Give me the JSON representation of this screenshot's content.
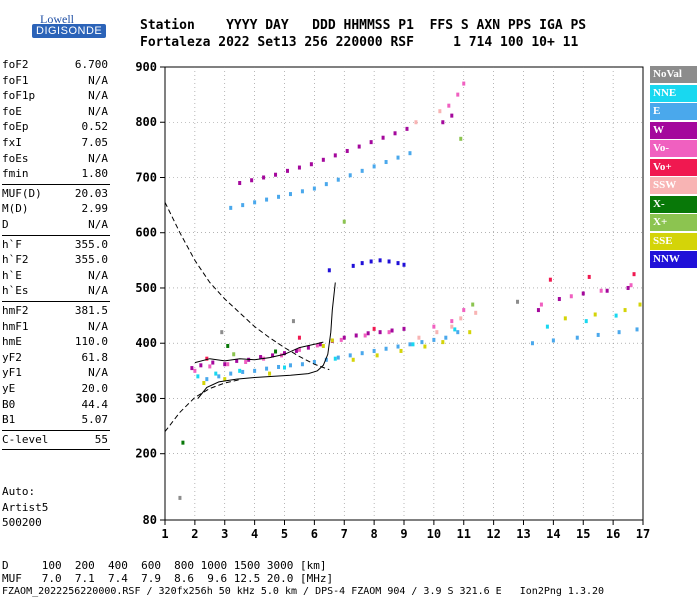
{
  "logo": {
    "brand": "Lowell",
    "product": "DIGISONDE"
  },
  "header": {
    "row1": "Station    YYYY DAY   DDD HHMMSS P1  FFS S AXN PPS IGA PS",
    "row2": "Fortaleza 2022 Set13 256 220000 RSF     1 714 100 10+ 11"
  },
  "params": [
    {
      "name": "foF2",
      "value": "6.700"
    },
    {
      "name": "foF1",
      "value": "N/A"
    },
    {
      "name": "foF1p",
      "value": "N/A"
    },
    {
      "name": "foE",
      "value": "N/A"
    },
    {
      "name": "foEp",
      "value": "0.52"
    },
    {
      "name": "fxI",
      "value": "7.05"
    },
    {
      "name": "foEs",
      "value": "N/A"
    },
    {
      "name": "fmin",
      "value": "1.80"
    },
    {
      "name": "MUF(D)",
      "value": "20.03"
    },
    {
      "name": "M(D)",
      "value": "2.99"
    },
    {
      "name": "D",
      "value": "N/A"
    },
    {
      "name": "h`F",
      "value": "355.0"
    },
    {
      "name": "h`F2",
      "value": "355.0"
    },
    {
      "name": "h`E",
      "value": "N/A"
    },
    {
      "name": "h`Es",
      "value": "N/A"
    },
    {
      "name": "hmF2",
      "value": "381.5"
    },
    {
      "name": "hmF1",
      "value": "N/A"
    },
    {
      "name": "hmE",
      "value": "110.0"
    },
    {
      "name": "yF2",
      "value": "61.8"
    },
    {
      "name": "yF1",
      "value": "N/A"
    },
    {
      "name": "yE",
      "value": "20.0"
    },
    {
      "name": "B0",
      "value": "44.4"
    },
    {
      "name": "B1",
      "value": "5.07"
    },
    {
      "name": "C-level",
      "value": "55"
    }
  ],
  "auto": {
    "label": "Auto:",
    "program": "Artist5",
    "version": "500200"
  },
  "legend": [
    {
      "label": "NoVal",
      "color": "#8c8c8c"
    },
    {
      "label": "NNE",
      "color": "#18d8f0"
    },
    {
      "label": "E",
      "color": "#4aa8ec"
    },
    {
      "label": "W",
      "color": "#a4089c"
    },
    {
      "label": "Vo-",
      "color": "#f060c0"
    },
    {
      "label": "Vo+",
      "color": "#f01850"
    },
    {
      "label": "SSW",
      "color": "#f8b4b4"
    },
    {
      "label": "X-",
      "color": "#087808"
    },
    {
      "label": "X+",
      "color": "#8cc450"
    },
    {
      "label": "SSE",
      "color": "#d4d408"
    },
    {
      "label": "NNW",
      "color": "#2010d8"
    }
  ],
  "footer": {
    "distance_row": "D     100  200  400  600  800 1000 1500 3000 [km]",
    "muf_row": "MUF   7.0  7.1  7.4  7.9  8.6  9.6 12.5 20.0 [MHz]",
    "file_row": "FZAOM_2022256220000.RSF / 320fx256h 50 kHz 5.0 km / DPS-4 FZAOM 904 / 3.9 S 321.6 E   Ion2Png 1.3.20"
  },
  "chart_data": {
    "type": "scatter",
    "title": "",
    "xlabel": "",
    "ylabel": "",
    "xlim": [
      1,
      17
    ],
    "ylim": [
      80,
      900
    ],
    "x_ticks": [
      1,
      2,
      3,
      4,
      5,
      6,
      7,
      8,
      9,
      10,
      11,
      12,
      13,
      14,
      15,
      16,
      17
    ],
    "y_ticks": [
      80,
      200,
      300,
      400,
      500,
      600,
      700,
      800,
      900
    ],
    "grid": "dotted",
    "legend_position": "right",
    "series": [
      {
        "name": "W",
        "color": "#a4089c",
        "points": [
          [
            1.9,
            355
          ],
          [
            2.2,
            360
          ],
          [
            2.6,
            365
          ],
          [
            3.0,
            362
          ],
          [
            3.4,
            368
          ],
          [
            3.8,
            370
          ],
          [
            4.2,
            375
          ],
          [
            4.6,
            378
          ],
          [
            5.0,
            382
          ],
          [
            5.4,
            386
          ],
          [
            5.8,
            392
          ],
          [
            6.2,
            398
          ],
          [
            6.6,
            404
          ],
          [
            7.0,
            410
          ],
          [
            7.4,
            414
          ],
          [
            7.8,
            418
          ],
          [
            8.2,
            420
          ],
          [
            8.6,
            423
          ],
          [
            9.0,
            426
          ],
          [
            3.5,
            690
          ],
          [
            3.9,
            695
          ],
          [
            4.3,
            700
          ],
          [
            4.7,
            705
          ],
          [
            5.1,
            712
          ],
          [
            5.5,
            718
          ],
          [
            5.9,
            724
          ],
          [
            6.3,
            732
          ],
          [
            6.7,
            740
          ],
          [
            7.1,
            748
          ],
          [
            7.5,
            756
          ],
          [
            7.9,
            764
          ],
          [
            8.3,
            772
          ],
          [
            8.7,
            780
          ],
          [
            9.1,
            788
          ],
          [
            10.3,
            800
          ],
          [
            10.6,
            812
          ],
          [
            13.5,
            460
          ],
          [
            14.2,
            480
          ],
          [
            15.0,
            490
          ],
          [
            15.8,
            495
          ],
          [
            16.5,
            500
          ]
        ]
      },
      {
        "name": "E",
        "color": "#4aa8ec",
        "points": [
          [
            2.4,
            335
          ],
          [
            2.8,
            340
          ],
          [
            3.2,
            345
          ],
          [
            3.6,
            348
          ],
          [
            4.0,
            350
          ],
          [
            4.4,
            354
          ],
          [
            4.8,
            357
          ],
          [
            5.2,
            360
          ],
          [
            5.6,
            362
          ],
          [
            6.0,
            366
          ],
          [
            6.4,
            370
          ],
          [
            6.8,
            374
          ],
          [
            7.2,
            378
          ],
          [
            7.6,
            382
          ],
          [
            8.0,
            386
          ],
          [
            8.4,
            390
          ],
          [
            8.8,
            394
          ],
          [
            9.2,
            398
          ],
          [
            9.6,
            402
          ],
          [
            10.0,
            406
          ],
          [
            10.4,
            410
          ],
          [
            10.8,
            420
          ],
          [
            3.2,
            645
          ],
          [
            3.6,
            650
          ],
          [
            4.0,
            655
          ],
          [
            4.4,
            660
          ],
          [
            4.8,
            665
          ],
          [
            5.2,
            670
          ],
          [
            5.6,
            675
          ],
          [
            6.0,
            680
          ],
          [
            6.4,
            688
          ],
          [
            6.8,
            696
          ],
          [
            7.2,
            704
          ],
          [
            7.6,
            712
          ],
          [
            8.0,
            720
          ],
          [
            8.4,
            728
          ],
          [
            8.8,
            736
          ],
          [
            9.2,
            744
          ],
          [
            13.3,
            400
          ],
          [
            14.0,
            405
          ],
          [
            14.8,
            410
          ],
          [
            15.5,
            415
          ],
          [
            16.2,
            420
          ],
          [
            16.8,
            425
          ]
        ]
      },
      {
        "name": "Vo-",
        "color": "#f060c0",
        "points": [
          [
            2.0,
            350
          ],
          [
            2.5,
            358
          ],
          [
            3.1,
            362
          ],
          [
            3.7,
            366
          ],
          [
            4.3,
            372
          ],
          [
            4.9,
            378
          ],
          [
            5.5,
            388
          ],
          [
            6.1,
            396
          ],
          [
            6.9,
            406
          ],
          [
            7.7,
            414
          ],
          [
            8.5,
            420
          ],
          [
            10.0,
            430
          ],
          [
            10.6,
            440
          ],
          [
            11.0,
            460
          ],
          [
            10.5,
            830
          ],
          [
            10.8,
            850
          ],
          [
            11.0,
            870
          ],
          [
            13.6,
            470
          ],
          [
            14.6,
            485
          ],
          [
            15.6,
            495
          ],
          [
            16.6,
            505
          ]
        ]
      },
      {
        "name": "SSE",
        "color": "#d4d408",
        "points": [
          [
            2.3,
            328
          ],
          [
            3.0,
            335
          ],
          [
            4.5,
            345
          ],
          [
            6.3,
            395
          ],
          [
            6.6,
            405
          ],
          [
            7.3,
            370
          ],
          [
            8.1,
            378
          ],
          [
            8.9,
            386
          ],
          [
            9.7,
            394
          ],
          [
            10.3,
            402
          ],
          [
            11.2,
            420
          ],
          [
            14.4,
            445
          ],
          [
            15.4,
            452
          ],
          [
            16.4,
            460
          ],
          [
            16.9,
            470
          ]
        ]
      },
      {
        "name": "NNE",
        "color": "#18d8f0",
        "points": [
          [
            2.1,
            340
          ],
          [
            2.7,
            345
          ],
          [
            3.5,
            350
          ],
          [
            5.0,
            356
          ],
          [
            6.7,
            372
          ],
          [
            9.3,
            398
          ],
          [
            10.7,
            425
          ],
          [
            13.8,
            430
          ],
          [
            15.1,
            440
          ],
          [
            16.1,
            450
          ]
        ]
      },
      {
        "name": "NNW",
        "color": "#2010d8",
        "points": [
          [
            7.3,
            540
          ],
          [
            7.6,
            545
          ],
          [
            7.9,
            548
          ],
          [
            8.2,
            550
          ],
          [
            8.5,
            548
          ],
          [
            8.8,
            545
          ],
          [
            9.0,
            542
          ],
          [
            6.5,
            532
          ]
        ]
      },
      {
        "name": "SSW",
        "color": "#f8b4b4",
        "points": [
          [
            9.5,
            410
          ],
          [
            10.1,
            420
          ],
          [
            10.6,
            430
          ],
          [
            10.9,
            445
          ],
          [
            11.4,
            455
          ],
          [
            9.4,
            800
          ],
          [
            10.2,
            820
          ]
        ]
      },
      {
        "name": "X+",
        "color": "#8cc450",
        "points": [
          [
            7.0,
            620
          ],
          [
            10.9,
            770
          ],
          [
            11.3,
            470
          ],
          [
            3.3,
            380
          ]
        ]
      },
      {
        "name": "X-",
        "color": "#087808",
        "points": [
          [
            1.6,
            220
          ],
          [
            3.1,
            395
          ],
          [
            4.7,
            385
          ]
        ]
      },
      {
        "name": "Vo+",
        "color": "#f01850",
        "points": [
          [
            2.4,
            372
          ],
          [
            5.5,
            410
          ],
          [
            8.0,
            426
          ],
          [
            13.9,
            515
          ],
          [
            15.2,
            520
          ],
          [
            16.7,
            525
          ]
        ]
      },
      {
        "name": "NoVal",
        "color": "#8c8c8c",
        "points": [
          [
            1.5,
            120
          ],
          [
            2.9,
            420
          ],
          [
            12.8,
            475
          ],
          [
            5.3,
            440
          ]
        ]
      }
    ],
    "curves": [
      {
        "style": "dashed",
        "points": [
          [
            1.0,
            655
          ],
          [
            1.5,
            600
          ],
          [
            2.0,
            550
          ],
          [
            2.5,
            510
          ],
          [
            3.0,
            480
          ],
          [
            3.5,
            455
          ],
          [
            4.0,
            430
          ],
          [
            4.5,
            410
          ],
          [
            5.0,
            392
          ],
          [
            5.5,
            376
          ],
          [
            6.0,
            362
          ],
          [
            6.5,
            352
          ]
        ]
      },
      {
        "style": "dashed",
        "points": [
          [
            1.0,
            240
          ],
          [
            1.5,
            275
          ],
          [
            2.0,
            302
          ],
          [
            2.5,
            318
          ],
          [
            3.0,
            328
          ],
          [
            3.5,
            334
          ]
        ]
      },
      {
        "style": "solid",
        "points": [
          [
            2.1,
            300
          ],
          [
            2.4,
            320
          ],
          [
            2.8,
            330
          ],
          [
            3.4,
            335
          ],
          [
            4.0,
            338
          ],
          [
            4.6,
            340
          ],
          [
            5.2,
            342
          ],
          [
            5.8,
            345
          ],
          [
            6.1,
            350
          ],
          [
            6.3,
            360
          ],
          [
            6.45,
            380
          ],
          [
            6.55,
            420
          ],
          [
            6.6,
            460
          ],
          [
            6.7,
            510
          ]
        ]
      },
      {
        "style": "solid",
        "points": [
          [
            2.0,
            365
          ],
          [
            2.5,
            372
          ],
          [
            3.0,
            368
          ],
          [
            3.5,
            372
          ],
          [
            4.0,
            370
          ],
          [
            4.5,
            374
          ],
          [
            5.0,
            380
          ],
          [
            5.5,
            392
          ],
          [
            6.0,
            398
          ],
          [
            6.3,
            402
          ]
        ]
      }
    ]
  }
}
